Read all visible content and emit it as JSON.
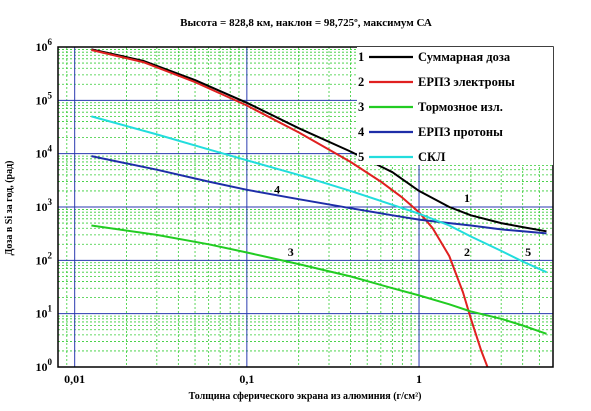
{
  "chart_data": {
    "type": "line",
    "title": "Высота = 828,8 км, наклон = 98,725º, максимум СА",
    "xlabel": "Толщина сферического экрана из алюминия (г/см²)",
    "ylabel": "Доза в Si за год, (рад)",
    "xscale": "log",
    "yscale": "log",
    "xlim": [
      0.008,
      6
    ],
    "ylim": [
      1,
      1000000
    ],
    "grid": true,
    "legend_position": "top-right",
    "x_ticks": [
      {
        "value": 0.01,
        "label": "0,01"
      },
      {
        "value": 0.1,
        "label": "0,1"
      },
      {
        "value": 1,
        "label": "1"
      }
    ],
    "y_ticks": [
      {
        "value": 1,
        "base": "10",
        "exp": "0"
      },
      {
        "value": 10,
        "base": "10",
        "exp": "1"
      },
      {
        "value": 100,
        "base": "10",
        "exp": "2"
      },
      {
        "value": 1000,
        "base": "10",
        "exp": "3"
      },
      {
        "value": 10000,
        "base": "10",
        "exp": "4"
      },
      {
        "value": 100000,
        "base": "10",
        "exp": "5"
      },
      {
        "value": 1000000,
        "base": "10",
        "exp": "6"
      }
    ],
    "series": [
      {
        "number": "1",
        "name": "Суммарная доза",
        "color": "#000000",
        "x": [
          0.0125,
          0.025,
          0.05,
          0.1,
          0.2,
          0.4,
          0.7,
          1.0,
          1.5,
          2.0,
          3.0,
          4.0,
          5.5
        ],
        "y": [
          900000,
          550000,
          240000,
          90000,
          30000,
          11000,
          4500,
          2000,
          1000,
          700,
          500,
          420,
          350
        ]
      },
      {
        "number": "2",
        "name": "ЕРПЗ электроны",
        "color": "#e02020",
        "x": [
          0.0125,
          0.025,
          0.05,
          0.1,
          0.2,
          0.4,
          0.6,
          0.8,
          1.0,
          1.2,
          1.5,
          1.8,
          2.0,
          2.3,
          2.5
        ],
        "y": [
          880000,
          520000,
          220000,
          80000,
          25000,
          7000,
          3000,
          1500,
          800,
          400,
          120,
          25,
          8,
          2,
          1
        ]
      },
      {
        "number": "3",
        "name": "Тормозное изл.",
        "color": "#22cc22",
        "x": [
          0.0125,
          0.03,
          0.06,
          0.1,
          0.2,
          0.4,
          0.7,
          1.0,
          1.5,
          2.0,
          3.0,
          4.0,
          5.5
        ],
        "y": [
          450,
          300,
          200,
          140,
          85,
          50,
          30,
          22,
          15,
          11,
          8,
          6,
          4.2
        ]
      },
      {
        "number": "4",
        "name": "ЕРПЗ протоны",
        "color": "#1e2ea8",
        "x": [
          0.0125,
          0.03,
          0.06,
          0.1,
          0.2,
          0.4,
          0.7,
          1.0,
          1.5,
          2.0,
          3.0,
          4.0,
          5.5
        ],
        "y": [
          9000,
          5000,
          3000,
          2100,
          1400,
          950,
          700,
          580,
          500,
          450,
          380,
          350,
          320
        ]
      },
      {
        "number": "5",
        "name": "СКЛ",
        "color": "#22dddd",
        "x": [
          0.0125,
          0.03,
          0.06,
          0.1,
          0.2,
          0.4,
          0.7,
          1.0,
          1.5,
          2.0,
          3.0,
          4.0,
          5.5
        ],
        "y": [
          50000,
          23000,
          12000,
          7500,
          4000,
          2000,
          1100,
          750,
          450,
          280,
          150,
          95,
          60
        ]
      }
    ],
    "annotations": [
      {
        "text": "1",
        "x": 1.9,
        "y": 1250
      },
      {
        "text": "2",
        "x": 1.9,
        "y": 120
      },
      {
        "text": "3",
        "x": 0.18,
        "y": 120
      },
      {
        "text": "4",
        "x": 0.15,
        "y": 1800
      },
      {
        "text": "5",
        "x": 4.3,
        "y": 120
      }
    ]
  }
}
